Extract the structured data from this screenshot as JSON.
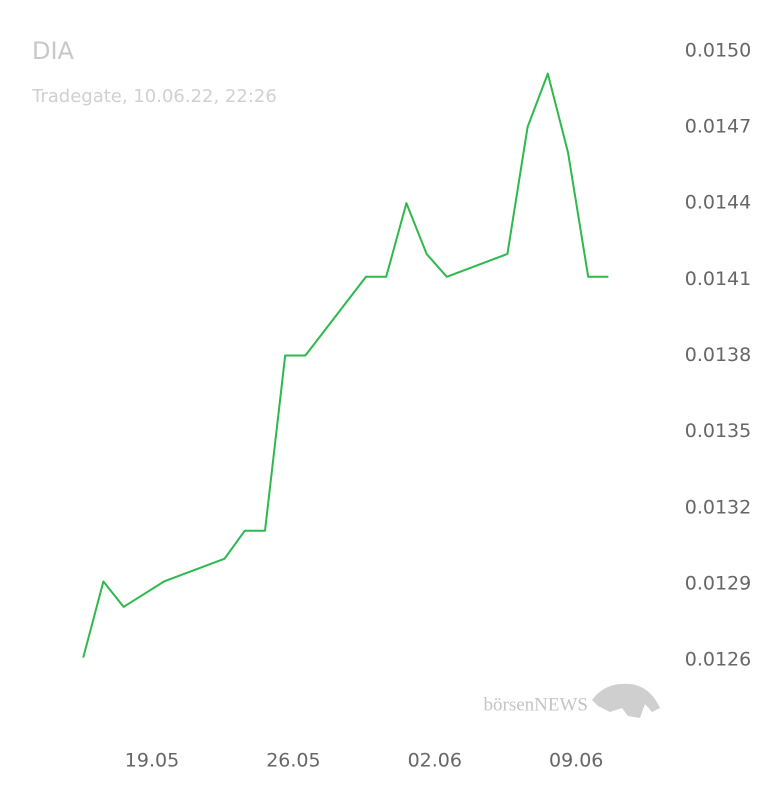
{
  "chart_data": {
    "type": "line",
    "title": "DIA",
    "subtitle": "Tradegate, 10.06.22, 22:26",
    "watermark": "börsenNEWS",
    "x": [
      "15.05",
      "16.05",
      "17.05",
      "19.05",
      "22.05",
      "23.05",
      "24.05",
      "25.05",
      "26.05",
      "29.05",
      "30.05",
      "31.05",
      "01.06",
      "02.06",
      "05.06",
      "06.06",
      "07.06",
      "08.06",
      "09.06",
      "10.06"
    ],
    "series": [
      {
        "name": "DIA",
        "color": "#2eb84e",
        "values": [
          0.01261,
          0.01291,
          0.01281,
          0.01291,
          0.013,
          0.01311,
          0.01311,
          0.0138,
          0.0138,
          0.01411,
          0.01411,
          0.0144,
          0.0142,
          0.01411,
          0.0142,
          0.0147,
          0.01491,
          0.0146,
          0.01411,
          0.01411
        ]
      }
    ],
    "xticks": [
      "19.05",
      "26.05",
      "02.06",
      "09.06"
    ],
    "ylim": [
      0.0124,
      0.0152
    ],
    "yticks": [
      {
        "value": 0.015,
        "label": "0.0150"
      },
      0.0147,
      0.0144,
      0.0141,
      0.0138,
      0.0135,
      0.0132,
      0.0129,
      0.0126
    ],
    "grid": false
  }
}
